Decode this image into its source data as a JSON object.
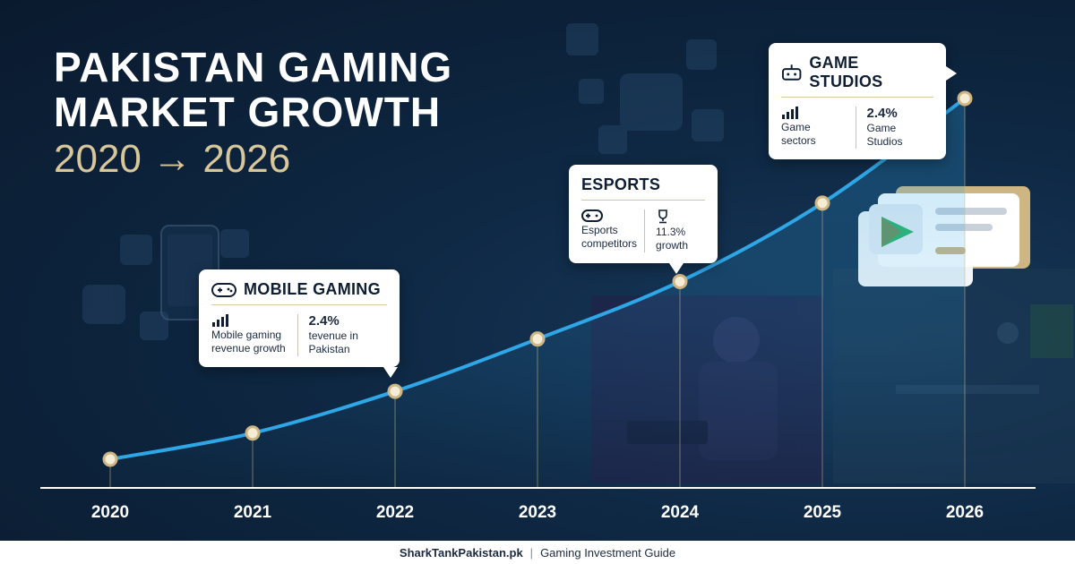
{
  "title": {
    "line1": "PAKISTAN GAMING",
    "line2": "MARKET GROWTH",
    "range": "2020 → 2026"
  },
  "chart_data": {
    "type": "line",
    "x": [
      "2020",
      "2021",
      "2022",
      "2023",
      "2024",
      "2025",
      "2026"
    ],
    "series": [
      {
        "values": [
          1.0,
          1.5,
          2.3,
          3.3,
          4.4,
          5.9,
          7.9
        ]
      }
    ],
    "xlabel": "",
    "ylabel": "",
    "grid": false,
    "line_color": "#2fa6e6",
    "point_fill": "#f5ecd6",
    "point_stroke": "#cdb683",
    "axis_color": "#ffffff"
  },
  "callouts": {
    "mobile": {
      "title": "MOBILE GAMING",
      "icon": "gamepad-icon",
      "left_icon": "bar-chart-icon",
      "left_text": "Mobile gaming revenue growth",
      "right_value": "2.4%",
      "right_text": "tevenue in Pakistan",
      "anchor_year": "2022"
    },
    "esports": {
      "title": "ESPORTS",
      "left_icon": "gamepad-icon",
      "left_text": "Esports competitors",
      "right_icon": "trophy-icon",
      "right_text": "11.3% growth",
      "anchor_year": "2024"
    },
    "studios": {
      "title": "GAME STUDIOS",
      "icon": "studio-controller-icon",
      "left_icon": "bar-chart-icon",
      "left_text": "Game sectors",
      "right_value": "2.4%",
      "right_text": "Game Studios",
      "anchor_year": "2026"
    }
  },
  "footer": {
    "site": "SharkTankPakistan.pk",
    "separator": "|",
    "guide": "Gaming Investment Guide"
  },
  "colors": {
    "background": "#0e2742",
    "accent_gold": "#d8c79a",
    "accent_blue": "#2fa6e6"
  }
}
